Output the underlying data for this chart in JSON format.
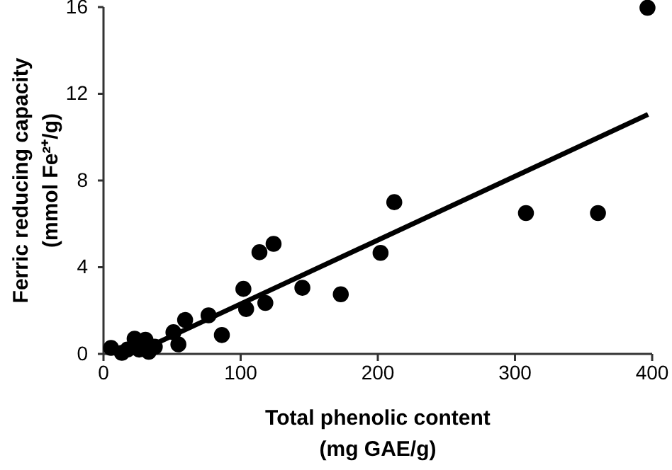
{
  "chart_data": {
    "type": "scatter",
    "xlabel": "Total phenolic content\n(mg GAE/g)",
    "ylabel": "Ferric reducing capacity\n(mmol Fe²⁺/g)",
    "xlim": [
      0,
      400
    ],
    "xticks": [
      0,
      100,
      200,
      300,
      400
    ],
    "ylim": [
      0,
      16
    ],
    "yticks": [
      0,
      4,
      8,
      12,
      16
    ],
    "grid": false,
    "marker": "circle",
    "series": [
      {
        "color": "#000000",
        "x": [
          5.5,
          13.4,
          17.5,
          22.7,
          26,
          30.6,
          33,
          37.4,
          51,
          54.6,
          59.5,
          76.6,
          86.3,
          102,
          104,
          113.7,
          118,
          124,
          145,
          173,
          202,
          212,
          308,
          360.5,
          396.6
        ],
        "values": [
          0.28,
          0.05,
          0.2,
          0.7,
          0.2,
          0.65,
          0.1,
          0.33,
          1.0,
          0.44,
          1.57,
          1.78,
          0.87,
          3.0,
          2.07,
          4.69,
          2.35,
          5.08,
          3.05,
          2.75,
          4.66,
          7.0,
          6.5,
          6.5,
          15.97
        ]
      },
      {
        "type": "line",
        "color": "#000000",
        "x": [
          38,
          397
        ],
        "values": [
          0.48,
          11.05
        ],
        "marker": "none"
      }
    ]
  }
}
